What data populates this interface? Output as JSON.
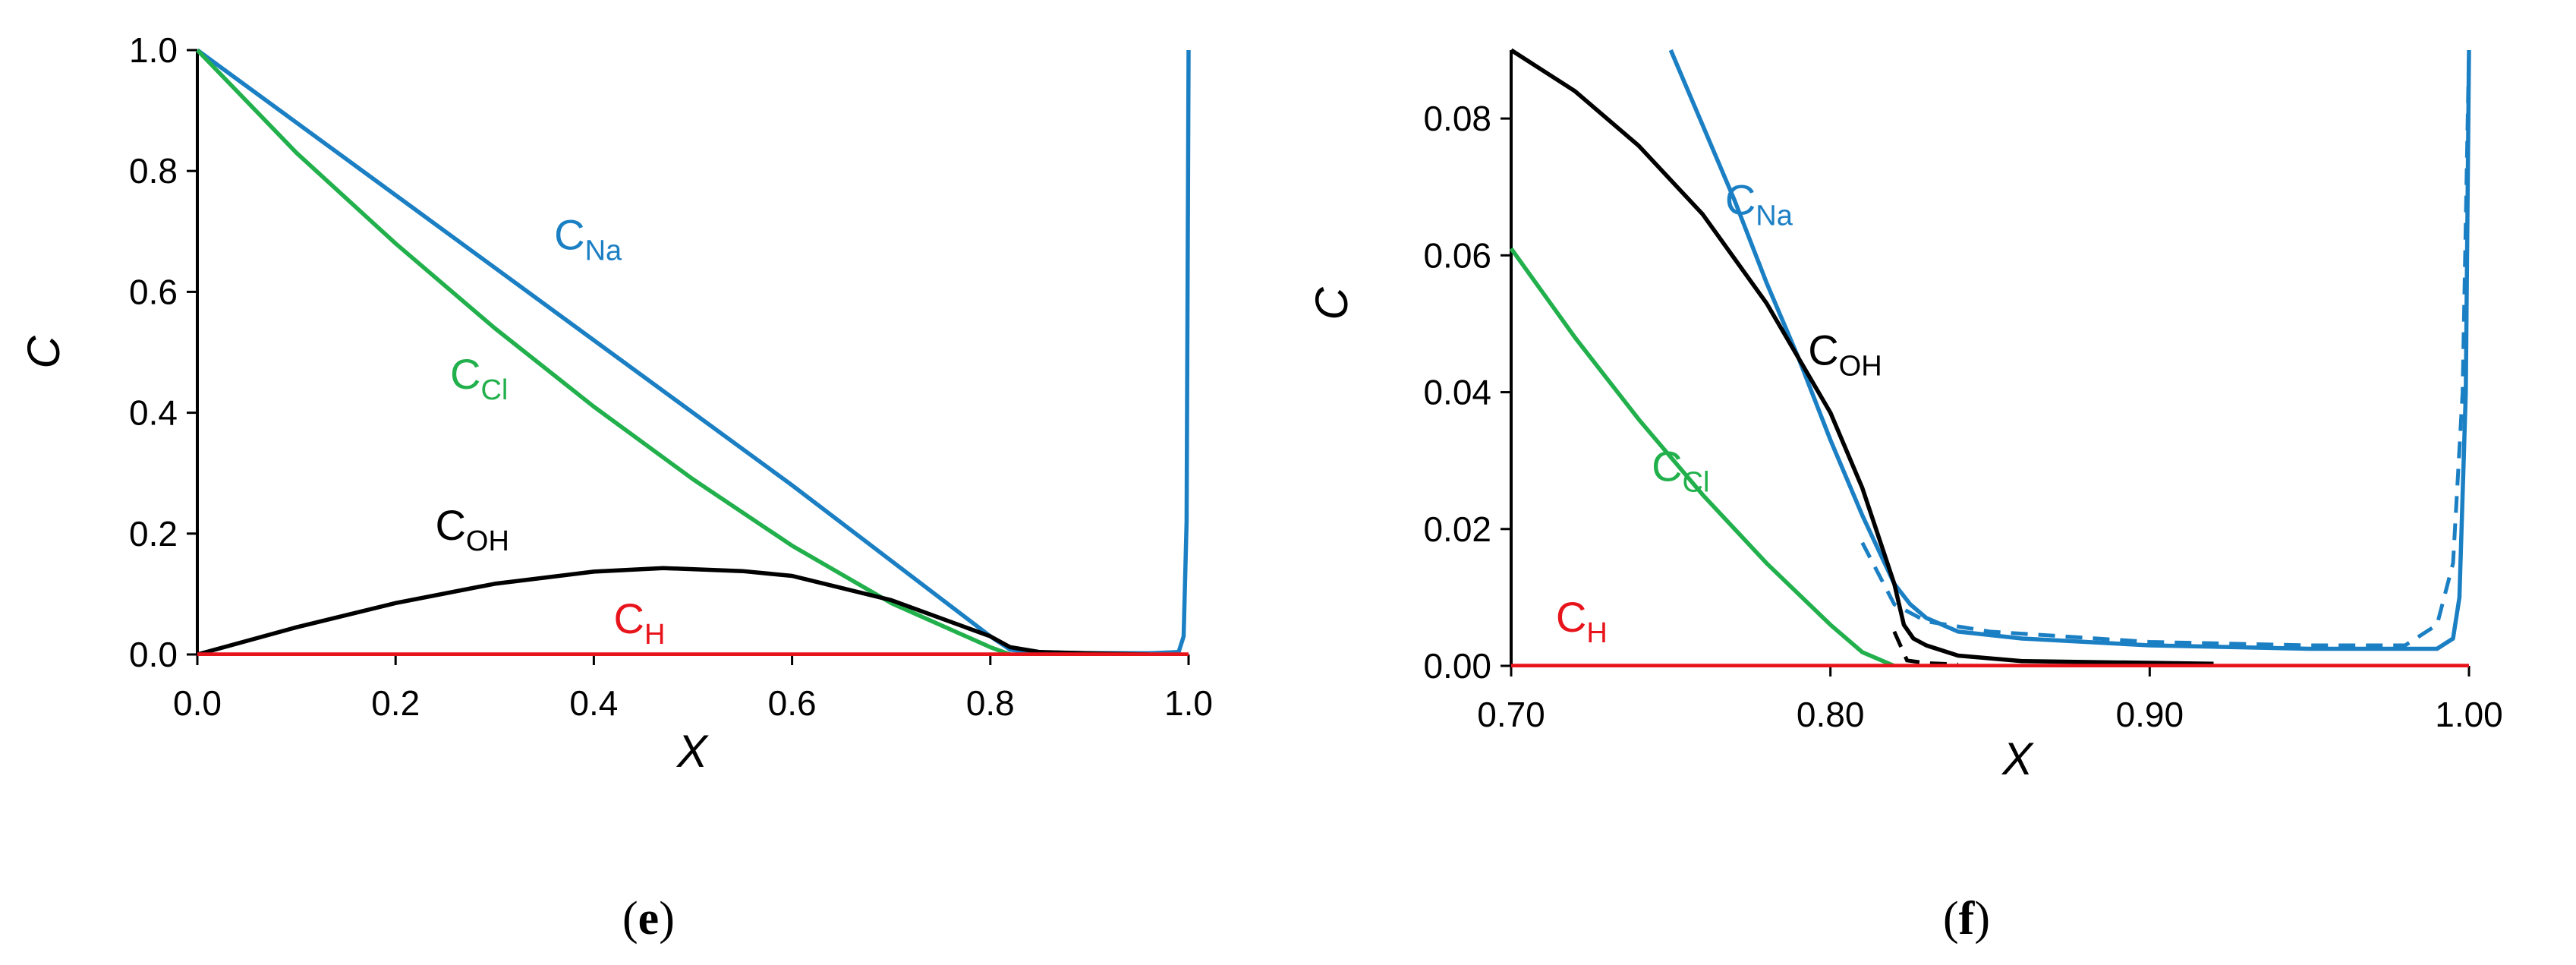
{
  "colors": {
    "Na": "#1b7fc4",
    "Cl": "#21b04b",
    "OH": "#000000",
    "H": "#e8141b",
    "axis": "#000000"
  },
  "chart_data": [
    {
      "type": "line",
      "panel": "e",
      "caption": {
        "open": "(",
        "letter": "e",
        "close": ")"
      },
      "xlabel": "X",
      "ylabel": "C",
      "xlim": [
        0.0,
        1.0
      ],
      "ylim": [
        0.0,
        1.0
      ],
      "xticks": [
        0.0,
        0.2,
        0.4,
        0.6,
        0.8,
        1.0
      ],
      "xtick_labels": [
        "0.0",
        "0.2",
        "0.4",
        "0.6",
        "0.8",
        "1.0"
      ],
      "yticks": [
        0.0,
        0.2,
        0.4,
        0.6,
        0.8,
        1.0
      ],
      "ytick_labels": [
        "0.0",
        "0.2",
        "0.4",
        "0.6",
        "0.8",
        "1.0"
      ],
      "grid": false,
      "series": [
        {
          "key": "Na",
          "label_main": "C",
          "label_sub": "Na",
          "label_at": [
            0.36,
            0.67
          ],
          "x": [
            0.0,
            0.2,
            0.4,
            0.6,
            0.8,
            0.82,
            0.84,
            0.9,
            0.96,
            0.99,
            0.995,
            0.998,
            1.0
          ],
          "y": [
            1.0,
            0.76,
            0.52,
            0.28,
            0.03,
            0.008,
            0.004,
            0.002,
            0.002,
            0.004,
            0.03,
            0.22,
            1.0
          ]
        },
        {
          "key": "Cl",
          "label_main": "C",
          "label_sub": "Cl",
          "label_at": [
            0.255,
            0.44
          ],
          "x": [
            0.0,
            0.1,
            0.2,
            0.3,
            0.4,
            0.5,
            0.6,
            0.7,
            0.8,
            0.82
          ],
          "y": [
            1.0,
            0.83,
            0.68,
            0.54,
            0.41,
            0.29,
            0.18,
            0.085,
            0.012,
            0.0
          ]
        },
        {
          "key": "OH",
          "label_main": "C",
          "label_sub": "OH",
          "label_at": [
            0.24,
            0.19
          ],
          "x": [
            0.0,
            0.1,
            0.2,
            0.3,
            0.4,
            0.47,
            0.55,
            0.6,
            0.7,
            0.8,
            0.82,
            0.85,
            0.9,
            0.96
          ],
          "y": [
            0.0,
            0.045,
            0.085,
            0.117,
            0.137,
            0.143,
            0.138,
            0.13,
            0.09,
            0.03,
            0.012,
            0.004,
            0.002,
            0.0
          ]
        },
        {
          "key": "H",
          "label_main": "C",
          "label_sub": "H",
          "label_at": [
            0.42,
            0.035
          ],
          "x": [
            0.0,
            1.0
          ],
          "y": [
            0.0,
            0.0
          ]
        }
      ]
    },
    {
      "type": "line",
      "panel": "f",
      "caption": {
        "open": "(",
        "letter": "f",
        "close": ")"
      },
      "xlabel": "X",
      "ylabel": "C",
      "xlim": [
        0.7,
        1.0
      ],
      "ylim": [
        0.0,
        0.09
      ],
      "xticks": [
        0.7,
        0.8,
        0.9,
        1.0
      ],
      "xtick_labels": [
        "0.70",
        "0.80",
        "0.90",
        "1.00"
      ],
      "yticks": [
        0.0,
        0.02,
        0.04,
        0.06,
        0.08
      ],
      "ytick_labels": [
        "0.00",
        "0.02",
        "0.04",
        "0.06",
        "0.08"
      ],
      "grid": false,
      "series": [
        {
          "key": "Na",
          "label_main": "C",
          "label_sub": "Na",
          "label_at": [
            0.767,
            0.066
          ],
          "x": [
            0.75,
            0.76,
            0.77,
            0.78,
            0.79,
            0.8,
            0.81,
            0.82,
            0.825,
            0.83,
            0.84,
            0.86,
            0.9,
            0.95,
            0.99,
            0.995,
            0.997,
            0.999,
            1.0
          ],
          "y": [
            0.09,
            0.079,
            0.068,
            0.056,
            0.045,
            0.033,
            0.022,
            0.012,
            0.009,
            0.007,
            0.005,
            0.004,
            0.003,
            0.0025,
            0.0025,
            0.004,
            0.01,
            0.04,
            0.09
          ]
        },
        {
          "key": "OH",
          "label_main": "C",
          "label_sub": "OH",
          "label_at": [
            0.793,
            0.044
          ],
          "x": [
            0.7,
            0.72,
            0.74,
            0.76,
            0.78,
            0.8,
            0.81,
            0.82,
            0.823,
            0.826,
            0.83,
            0.84,
            0.86,
            0.92
          ],
          "y": [
            0.09,
            0.084,
            0.076,
            0.066,
            0.053,
            0.037,
            0.026,
            0.012,
            0.006,
            0.004,
            0.003,
            0.0015,
            0.0007,
            0.0003
          ]
        },
        {
          "key": "Cl",
          "label_main": "C",
          "label_sub": "Cl",
          "label_at": [
            0.744,
            0.027
          ],
          "x": [
            0.7,
            0.72,
            0.74,
            0.76,
            0.78,
            0.8,
            0.81,
            0.82
          ],
          "y": [
            0.061,
            0.048,
            0.036,
            0.025,
            0.015,
            0.006,
            0.002,
            0.0
          ]
        },
        {
          "key": "H",
          "label_main": "C",
          "label_sub": "H",
          "label_at": [
            0.714,
            0.005
          ],
          "x": [
            0.7,
            1.0
          ],
          "y": [
            0.0,
            0.0
          ]
        }
      ],
      "dashed_series": [
        {
          "key": "Na",
          "x": [
            0.81,
            0.82,
            0.83,
            0.85,
            0.9,
            0.95,
            0.98,
            0.99,
            0.995,
            0.998,
            1.0
          ],
          "y": [
            0.018,
            0.009,
            0.0065,
            0.005,
            0.0035,
            0.003,
            0.003,
            0.006,
            0.015,
            0.04,
            0.09
          ]
        },
        {
          "key": "OH",
          "x": [
            0.82,
            0.824,
            0.83,
            0.84
          ],
          "y": [
            0.005,
            0.0008,
            0.0004,
            0.0002
          ]
        }
      ]
    }
  ]
}
